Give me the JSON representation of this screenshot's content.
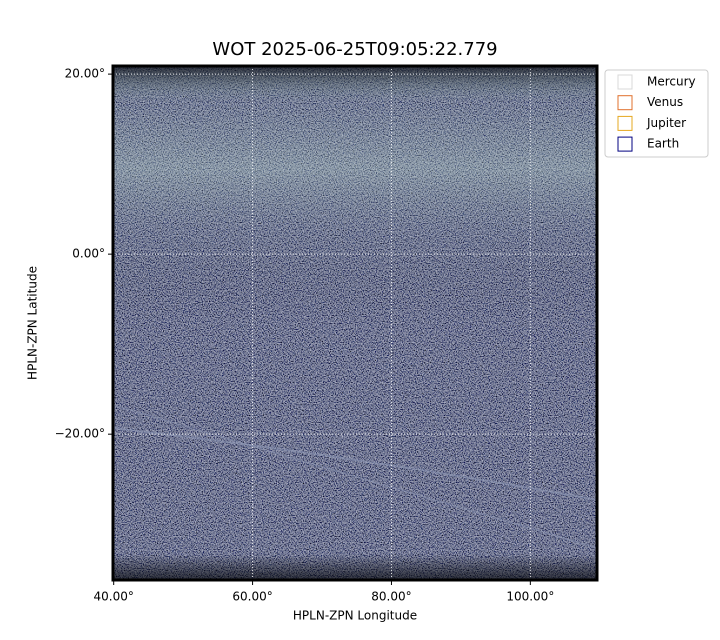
{
  "chart_data": {
    "type": "image",
    "title": "WOT 2025-06-25T09:05:22.779",
    "x_label": "HPLN-ZPN Longitude",
    "y_label": "HPLN-ZPN Latitude",
    "xlim": [
      39.9,
      109.6
    ],
    "ylim": [
      -36.2,
      20.9
    ],
    "xticks": [
      {
        "value": 40,
        "label": "40.00°"
      },
      {
        "value": 60,
        "label": "60.00°"
      },
      {
        "value": 80,
        "label": "80.00°"
      },
      {
        "value": 100,
        "label": "100.00°"
      }
    ],
    "yticks": [
      {
        "value": 20,
        "label": "20.00°"
      },
      {
        "value": 0,
        "label": "0.00°"
      },
      {
        "value": -20,
        "label": "−20.00°"
      }
    ],
    "grid": true,
    "legend_position": "upper-right-outside",
    "legend": [
      {
        "name": "Mercury",
        "color": "#d8d8d8"
      },
      {
        "name": "Venus",
        "color": "#e0702c"
      },
      {
        "name": "Jupiter",
        "color": "#e6a820"
      },
      {
        "name": "Earth",
        "color": "#000080"
      }
    ]
  }
}
